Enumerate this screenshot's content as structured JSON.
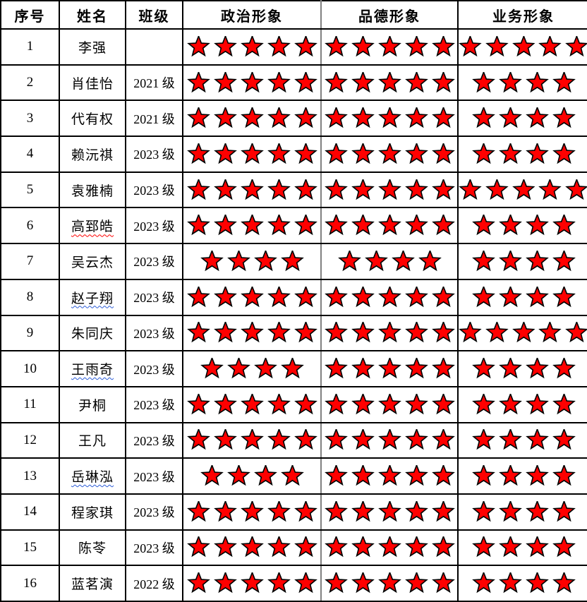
{
  "style": {
    "star_fill": "#ff0000",
    "star_stroke": "#000000",
    "grid_line": "#000000",
    "secondary_grid_line": "#808080",
    "spellcheck_red": "#ff0000",
    "spellcheck_blue": "#2a5bd7"
  },
  "icons": {
    "rating_symbol": "star-icon"
  },
  "table": {
    "headers": {
      "index": "序号",
      "name": "姓名",
      "class": "班级",
      "political": "政治形象",
      "moral": "品德形象",
      "business": "业务形象"
    },
    "rows": [
      {
        "index": "1",
        "name": "李强",
        "class": "",
        "political": 5,
        "moral": 5,
        "business": 5,
        "spellcheck": null
      },
      {
        "index": "2",
        "name": "肖佳怡",
        "class": "2021 级",
        "political": 5,
        "moral": 5,
        "business": 4,
        "spellcheck": null
      },
      {
        "index": "3",
        "name": "代有权",
        "class": "2021 级",
        "political": 5,
        "moral": 5,
        "business": 4,
        "spellcheck": null
      },
      {
        "index": "4",
        "name": "赖沅祺",
        "class": "2023 级",
        "political": 5,
        "moral": 5,
        "business": 4,
        "spellcheck": null
      },
      {
        "index": "5",
        "name": "袁雅楠",
        "class": "2023 级",
        "political": 5,
        "moral": 5,
        "business": 5,
        "spellcheck": null
      },
      {
        "index": "6",
        "name": "高郅皓",
        "class": "2023 级",
        "political": 5,
        "moral": 5,
        "business": 4,
        "spellcheck": "red"
      },
      {
        "index": "7",
        "name": "吴云杰",
        "class": "2023 级",
        "political": 4,
        "moral": 4,
        "business": 4,
        "spellcheck": null
      },
      {
        "index": "8",
        "name": "赵子翔",
        "class": "2023 级",
        "political": 5,
        "moral": 5,
        "business": 4,
        "spellcheck": "blue"
      },
      {
        "index": "9",
        "name": "朱同庆",
        "class": "2023 级",
        "political": 5,
        "moral": 5,
        "business": 5,
        "spellcheck": null
      },
      {
        "index": "10",
        "name": "王雨奇",
        "class": "2023 级",
        "political": 4,
        "moral": 5,
        "business": 4,
        "spellcheck": "blue"
      },
      {
        "index": "11",
        "name": "尹桐",
        "class": "2023 级",
        "political": 5,
        "moral": 5,
        "business": 4,
        "spellcheck": null
      },
      {
        "index": "12",
        "name": "王凡",
        "class": "2023 级",
        "political": 5,
        "moral": 5,
        "business": 4,
        "spellcheck": null
      },
      {
        "index": "13",
        "name": "岳琳泓",
        "class": "2023 级",
        "political": 4,
        "moral": 5,
        "business": 4,
        "spellcheck": "blue"
      },
      {
        "index": "14",
        "name": "程家琪",
        "class": "2023 级",
        "political": 5,
        "moral": 5,
        "business": 4,
        "spellcheck": null
      },
      {
        "index": "15",
        "name": "陈苓",
        "class": "2023 级",
        "political": 5,
        "moral": 5,
        "business": 4,
        "spellcheck": null
      },
      {
        "index": "16",
        "name": "蓝茗演",
        "class": "2022 级",
        "political": 5,
        "moral": 5,
        "business": 4,
        "spellcheck": null
      }
    ]
  }
}
